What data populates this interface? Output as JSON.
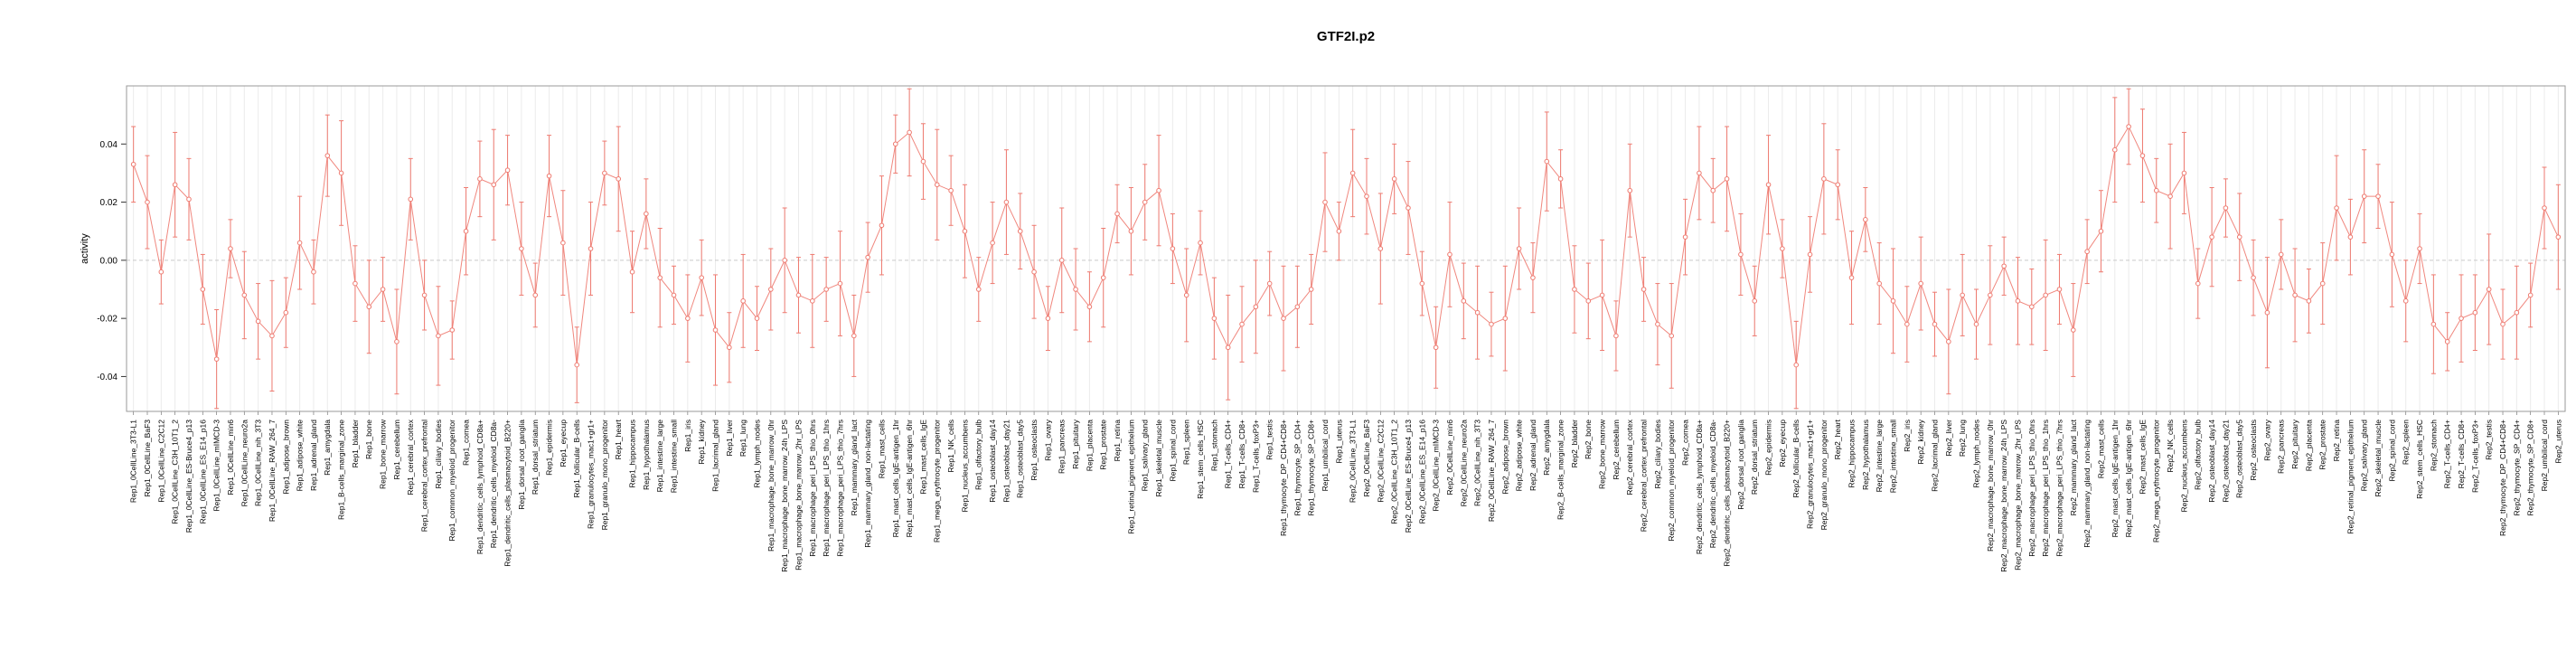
{
  "chart_data": {
    "type": "scatter",
    "title": "GTF2I.p2",
    "xlabel": "",
    "ylabel": "activity",
    "ylim": [
      -0.052,
      0.06
    ],
    "yticks": [
      -0.04,
      -0.02,
      0.0,
      0.02,
      0.04
    ],
    "grid": "vertical-line-per-category",
    "legend": "none",
    "point_style": "open-circle-with-error-bars-connected-by-line",
    "point_color": "#ee7a70",
    "replicates": [
      "Rep1",
      "Rep2"
    ],
    "samples": [
      "0CellLine_3T3-L1",
      "0CellLine_BaF3",
      "0CellLine_C2C12",
      "0CellLine_C3H_10T1_2",
      "0CellLine_ES-Bruce4_p13",
      "0CellLine_ES_E14_p16",
      "0CellLine_mIMCD-3",
      "0CellLine_min6",
      "0CellLine_neuro2a",
      "0CellLine_nih_3T3",
      "0CellLine_RAW_264_7",
      "adipose_brown",
      "adipose_white",
      "adrenal_gland",
      "amygdala",
      "B-cells_marginal_zone",
      "bladder",
      "bone",
      "bone_marrow",
      "cerebellum",
      "cerebral_cortex",
      "cerebral_cortex_prefrontal",
      "ciliary_bodies",
      "common_myeloid_progenitor",
      "cornea",
      "dendritic_cells_lymphoid_CD8a+",
      "dendritic_cells_myeloid_CD8a-",
      "dendritic_cells_plasmacytoid_B220+",
      "dorsal_root_ganglia",
      "dorsal_striatum",
      "epidermis",
      "eyecup",
      "follicular_B-cells",
      "granulocytes_mac1+gr1+",
      "granulo_mono_progenitor",
      "heart",
      "hippocampus",
      "hypothalamus",
      "intestine_large",
      "intestine_small",
      "iris",
      "kidney",
      "lacrimal_gland",
      "liver",
      "lung",
      "lymph_nodes",
      "macrophage_bone_marrow_0hr",
      "macrophage_bone_marrow_24h_LPS",
      "macrophage_bone_marrow_2hr_LPS",
      "macrophage_peri_LPS_thio_0hrs",
      "macrophage_peri_LPS_thio_1hrs",
      "macrophage_peri_LPS_thio_7hrs",
      "mammary_gland_lact",
      "mammary_gland_non-lactating",
      "mast_cells",
      "mast_cells_IgE-antigen_1hr",
      "mast_cells_IgE-antigen_6hr",
      "mast_cells_IgE",
      "mega_erythrocyte_progenitor",
      "NK_cells",
      "nucleus_accumbens",
      "olfactory_bulb",
      "osteoblast_day14",
      "osteoblast_day21",
      "osteoblast_day5",
      "osteoclasts",
      "ovary",
      "pancreas",
      "pituitary",
      "placenta",
      "prostate",
      "retina",
      "retinal_pigment_epithelium",
      "salivary_gland",
      "skeletal_muscle",
      "spinal_cord",
      "spleen",
      "stem_cells_HSC",
      "stomach",
      "T-cells_CD4+",
      "T-cells_CD8+",
      "T-cells_foxP3+",
      "testis",
      "thymocyte_DP_CD4+CD8+",
      "thymocyte_SP_CD4+",
      "thymocyte_SP_CD8+",
      "umbilical_cord",
      "uterus"
    ],
    "series": [
      {
        "name": "Rep1",
        "values": [
          0.033,
          0.02,
          -0.004,
          0.026,
          0.021,
          -0.01,
          -0.034,
          0.004,
          -0.012,
          -0.021,
          -0.026,
          -0.018,
          0.006,
          -0.004,
          0.036,
          0.03,
          -0.008,
          -0.016,
          -0.01,
          -0.028,
          0.021,
          -0.012,
          -0.026,
          -0.024,
          0.01,
          0.028,
          0.026,
          0.031,
          0.004,
          -0.012,
          0.029,
          0.006,
          -0.036,
          0.004,
          0.03,
          0.028,
          -0.004,
          0.016,
          -0.006,
          -0.012,
          -0.02,
          -0.006,
          -0.024,
          -0.03,
          -0.014,
          -0.02,
          -0.01,
          0.0,
          -0.012,
          -0.014,
          -0.01,
          -0.008,
          -0.026,
          0.001,
          0.012,
          0.04,
          0.044,
          0.034,
          0.026,
          0.024,
          0.01,
          -0.01,
          0.006,
          0.02,
          0.01,
          -0.004,
          -0.02,
          0.0,
          -0.01,
          -0.016,
          -0.006,
          0.016,
          0.01,
          0.02,
          0.024,
          0.004,
          -0.012,
          0.006,
          -0.02,
          -0.03,
          -0.022,
          -0.016,
          -0.008,
          -0.02,
          -0.016,
          -0.01,
          0.02,
          0.01
        ],
        "errors": [
          0.013,
          0.016,
          0.011,
          0.018,
          0.014,
          0.012,
          0.017,
          0.01,
          0.015,
          0.013,
          0.019,
          0.012,
          0.016,
          0.011,
          0.014,
          0.018,
          0.013,
          0.016,
          0.011,
          0.018,
          0.014,
          0.012,
          0.017,
          0.01,
          0.015,
          0.013,
          0.019,
          0.012,
          0.016,
          0.011,
          0.014,
          0.018,
          0.013,
          0.016,
          0.011,
          0.018,
          0.014,
          0.012,
          0.017,
          0.01,
          0.015,
          0.013,
          0.019,
          0.012,
          0.016,
          0.011,
          0.014,
          0.018,
          0.013,
          0.016,
          0.011,
          0.018,
          0.014,
          0.012,
          0.017,
          0.01,
          0.015,
          0.013,
          0.019,
          0.012,
          0.016,
          0.011,
          0.014,
          0.018,
          0.013,
          0.016,
          0.011,
          0.018,
          0.014,
          0.012,
          0.017,
          0.01,
          0.015,
          0.013,
          0.019,
          0.012,
          0.016,
          0.011,
          0.014,
          0.018,
          0.013,
          0.016,
          0.011,
          0.018,
          0.014,
          0.012,
          0.017,
          0.01
        ]
      },
      {
        "name": "Rep2",
        "values": [
          0.03,
          0.022,
          0.004,
          0.028,
          0.018,
          -0.008,
          -0.03,
          0.002,
          -0.014,
          -0.018,
          -0.022,
          -0.02,
          0.004,
          -0.006,
          0.034,
          0.028,
          -0.01,
          -0.014,
          -0.012,
          -0.026,
          0.024,
          -0.01,
          -0.022,
          -0.026,
          0.008,
          0.03,
          0.024,
          0.028,
          0.002,
          -0.014,
          0.026,
          0.004,
          -0.036,
          0.002,
          0.028,
          0.026,
          -0.006,
          0.014,
          -0.008,
          -0.014,
          -0.022,
          -0.008,
          -0.022,
          -0.028,
          -0.012,
          -0.022,
          -0.012,
          -0.002,
          -0.014,
          -0.016,
          -0.012,
          -0.01,
          -0.024,
          0.003,
          0.01,
          0.038,
          0.046,
          0.036,
          0.024,
          0.022,
          0.03,
          -0.008,
          0.008,
          0.018,
          0.008,
          -0.006,
          -0.018,
          0.002,
          -0.012,
          -0.014,
          -0.008,
          0.018,
          0.008,
          0.022,
          0.022,
          0.002,
          -0.014,
          0.004,
          -0.022,
          -0.028,
          -0.02,
          -0.018,
          -0.01,
          -0.022,
          -0.018,
          -0.012,
          0.018,
          0.008
        ],
        "errors": [
          0.015,
          0.013,
          0.019,
          0.012,
          0.016,
          0.011,
          0.014,
          0.018,
          0.013,
          0.016,
          0.011,
          0.018,
          0.014,
          0.012,
          0.017,
          0.01,
          0.015,
          0.013,
          0.019,
          0.012,
          0.016,
          0.011,
          0.014,
          0.018,
          0.013,
          0.016,
          0.011,
          0.018,
          0.014,
          0.012,
          0.017,
          0.01,
          0.015,
          0.013,
          0.019,
          0.012,
          0.016,
          0.011,
          0.014,
          0.018,
          0.013,
          0.016,
          0.011,
          0.018,
          0.014,
          0.012,
          0.017,
          0.01,
          0.015,
          0.013,
          0.019,
          0.012,
          0.016,
          0.011,
          0.014,
          0.018,
          0.013,
          0.016,
          0.011,
          0.018,
          0.014,
          0.012,
          0.017,
          0.01,
          0.015,
          0.013,
          0.019,
          0.012,
          0.016,
          0.011,
          0.014,
          0.018,
          0.013,
          0.016,
          0.011,
          0.018,
          0.014,
          0.012,
          0.017,
          0.01,
          0.015,
          0.013,
          0.019,
          0.012,
          0.016,
          0.011,
          0.014,
          0.018
        ]
      }
    ]
  }
}
